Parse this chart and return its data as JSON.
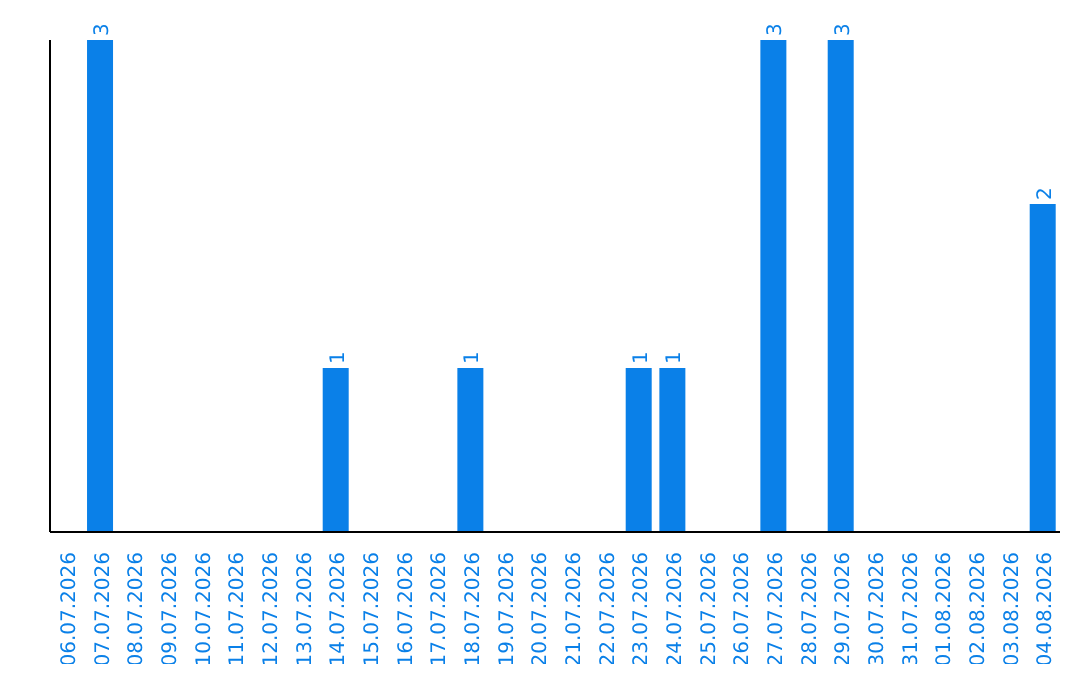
{
  "chart_data": {
    "type": "bar",
    "relative": false,
    "categories": [
      "06.07.2026",
      "07.07.2026",
      "08.07.2026",
      "09.07.2026",
      "10.07.2026",
      "11.07.2026",
      "12.07.2026",
      "13.07.2026",
      "14.07.2026",
      "15.07.2026",
      "16.07.2026",
      "17.07.2026",
      "18.07.2026",
      "19.07.2026",
      "20.07.2026",
      "21.07.2026",
      "22.07.2026",
      "23.07.2026",
      "24.07.2026",
      "25.07.2026",
      "26.07.2026",
      "27.07.2026",
      "28.07.2026",
      "29.07.2026",
      "30.07.2026",
      "31.07.2026",
      "01.08.2026",
      "02.08.2026",
      "03.08.2026",
      "04.08.2026"
    ],
    "values": [
      0,
      3,
      0,
      0,
      0,
      0,
      0,
      0,
      1,
      0,
      0,
      0,
      1,
      0,
      0,
      0,
      0,
      1,
      1,
      0,
      0,
      3,
      0,
      3,
      0,
      0,
      0,
      0,
      0,
      2
    ],
    "value_labels": [
      null,
      "3",
      null,
      null,
      null,
      null,
      null,
      null,
      "1",
      null,
      null,
      null,
      "1",
      null,
      null,
      null,
      null,
      "1",
      "1",
      null,
      null,
      "3",
      null,
      "3",
      null,
      null,
      null,
      null,
      null,
      "2"
    ],
    "color": "#0a80e8"
  }
}
